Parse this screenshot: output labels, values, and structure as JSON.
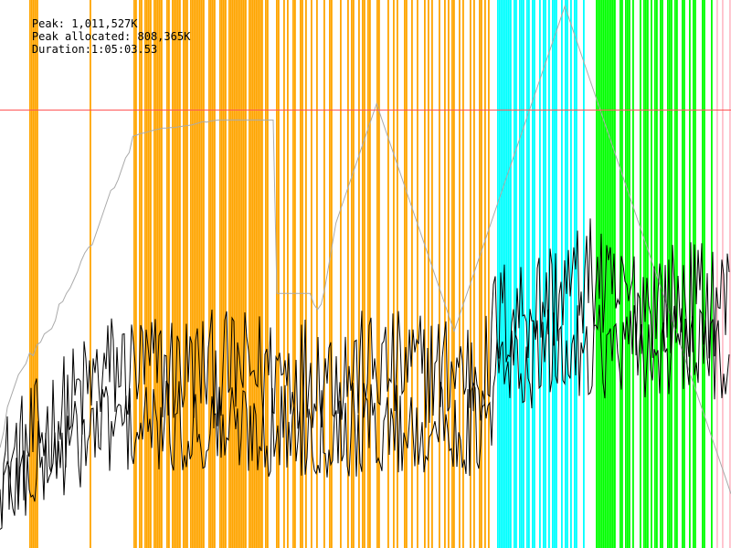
{
  "header": {
    "peak_text": "Peak: 1,011,527K",
    "peak_allocated_text": "Peak allocated: 808,365K",
    "duration_text": "Duration:1:05:03.53"
  },
  "colors": {
    "orange": "#FFA500",
    "cyan": "#00FFFF",
    "green": "#00FF00",
    "pink": "#FFC0CB",
    "threshold": "#FF5555",
    "heap": "#AAAAAA",
    "allocated": "#000000",
    "live": "#000000"
  },
  "chart_data": {
    "type": "line",
    "ylim": [
      0,
      1011527
    ],
    "threshold": 808365,
    "x_count": 400,
    "bands": [
      {
        "color_key": "orange",
        "x": [
          16,
          17,
          18,
          19,
          20,
          49,
          73,
          74,
          75,
          76,
          77,
          78,
          79,
          80,
          81,
          82,
          83,
          84,
          85,
          86,
          87,
          88,
          89,
          90,
          91,
          92,
          93,
          94,
          95,
          96,
          97,
          98,
          99,
          100,
          101,
          102,
          103,
          104,
          105,
          106,
          107,
          108,
          109,
          110,
          111,
          112,
          113,
          114,
          115,
          116,
          117,
          118,
          119,
          120,
          121,
          122,
          123,
          124,
          125,
          126,
          127,
          128,
          129,
          130,
          131,
          132,
          133,
          134,
          135,
          136,
          137,
          138,
          139,
          140,
          141,
          142,
          143,
          144,
          145,
          146,
          147,
          148,
          149,
          150,
          151,
          152,
          153,
          154,
          155,
          156,
          157,
          158,
          159,
          160,
          161,
          162,
          163,
          164,
          165,
          166,
          167,
          168,
          169,
          170,
          171,
          172,
          173,
          174,
          175,
          176,
          177,
          178,
          179,
          180,
          181,
          182,
          183,
          184,
          185,
          186,
          187,
          188,
          189,
          190,
          191,
          192,
          193,
          194,
          195,
          196,
          197,
          198,
          199,
          200,
          201,
          202,
          203,
          204,
          205,
          206,
          207,
          208,
          209,
          210,
          211,
          212,
          213,
          214,
          215,
          216,
          217,
          218,
          219,
          220,
          221,
          222,
          223,
          224,
          225,
          226,
          227,
          228,
          229,
          230,
          231,
          232,
          233,
          234,
          235,
          236,
          237,
          238,
          239,
          240,
          241,
          242,
          243,
          244,
          245,
          246,
          247,
          248,
          249,
          250,
          251,
          252,
          253,
          254,
          255,
          256,
          257,
          258,
          259,
          260,
          261,
          262,
          263,
          264,
          265,
          266,
          267
        ],
        "density": [
          1,
          1,
          1,
          1,
          1,
          1,
          1,
          1,
          0,
          1,
          1,
          0,
          1,
          1,
          1,
          1,
          0,
          1,
          1,
          1,
          1,
          1,
          0,
          0,
          1,
          1,
          0,
          1,
          1,
          1,
          1,
          1,
          0,
          1,
          1,
          1,
          0,
          1,
          1,
          1,
          1,
          1,
          1,
          1,
          1,
          0,
          0,
          1,
          1,
          1,
          1,
          0,
          0,
          1,
          1,
          1,
          1,
          0,
          1,
          1,
          1,
          1,
          1,
          1,
          1,
          1,
          1,
          1,
          0,
          1,
          1,
          1,
          1,
          1,
          1,
          1,
          1,
          0,
          1,
          1,
          0,
          0,
          0,
          0,
          1,
          1,
          0,
          0,
          1,
          0,
          1,
          0,
          0,
          1,
          1,
          0,
          0,
          1,
          1,
          0,
          1,
          0,
          0,
          1,
          0,
          0,
          1,
          0,
          0,
          0,
          1,
          0,
          0,
          1,
          1,
          0,
          0,
          0,
          0,
          1,
          0,
          0,
          0,
          1,
          0,
          1,
          1,
          0,
          0,
          1,
          0,
          1,
          1,
          0,
          1,
          1,
          0,
          0,
          0,
          1,
          1,
          0,
          0,
          0,
          0,
          1,
          0,
          0,
          1,
          0,
          1,
          0,
          0,
          0,
          1,
          1,
          0,
          0,
          1,
          0,
          0,
          1,
          0,
          0,
          0,
          1,
          0,
          1,
          0,
          1,
          0,
          0,
          0,
          1,
          0,
          0,
          1,
          0,
          1,
          0,
          1,
          1,
          0,
          0,
          1,
          0,
          1,
          0,
          0,
          0,
          1,
          0,
          1,
          0,
          0,
          1,
          1,
          0,
          1,
          0,
          1,
          0,
          0,
          0,
          1,
          1,
          0,
          0,
          0,
          1,
          0,
          1,
          0,
          1
        ]
      },
      {
        "color_key": "cyan",
        "x": [
          272,
          273,
          274,
          275,
          276,
          277,
          278,
          279,
          280,
          281,
          282,
          283,
          284,
          285,
          286,
          287,
          288,
          289,
          290,
          291,
          292,
          293,
          294,
          295,
          296,
          297,
          298,
          299,
          300,
          301,
          302,
          303,
          304,
          305,
          306,
          307,
          308,
          309,
          310,
          311,
          312,
          313,
          314,
          315,
          316,
          317,
          318,
          319,
          320
        ],
        "density": [
          1,
          1,
          1,
          1,
          1,
          1,
          1,
          1,
          0,
          1,
          1,
          0,
          1,
          1,
          1,
          0,
          1,
          1,
          0,
          1,
          1,
          0,
          0,
          1,
          0,
          1,
          1,
          0,
          1,
          0,
          1,
          1,
          1,
          0,
          0,
          1,
          0,
          1,
          1,
          0,
          1,
          0,
          1,
          1,
          0,
          0,
          0,
          1,
          0
        ]
      },
      {
        "color_key": "green",
        "x": [
          326,
          327,
          328,
          329,
          330,
          331,
          332,
          333,
          334,
          335,
          336,
          337,
          338,
          339,
          340,
          341,
          342,
          343,
          344,
          345,
          346,
          347,
          348,
          349,
          350,
          351,
          352,
          353,
          354,
          355,
          356,
          357,
          358,
          359,
          360,
          361,
          362,
          363,
          364,
          365,
          366,
          367,
          368,
          369,
          370,
          371,
          372,
          373,
          374,
          375,
          376,
          377,
          378,
          379,
          380,
          381,
          382,
          383,
          384,
          385,
          386,
          387,
          388,
          389,
          390
        ],
        "density": [
          1,
          1,
          1,
          1,
          1,
          1,
          1,
          1,
          1,
          1,
          1,
          0,
          0,
          1,
          1,
          0,
          1,
          1,
          1,
          0,
          1,
          0,
          0,
          0,
          1,
          0,
          1,
          1,
          1,
          0,
          1,
          0,
          1,
          1,
          0,
          1,
          1,
          0,
          0,
          1,
          1,
          1,
          0,
          1,
          1,
          0,
          0,
          1,
          1,
          0,
          0,
          1,
          0,
          1,
          1,
          0,
          0,
          0,
          1,
          1,
          0,
          0,
          0,
          1,
          0
        ]
      },
      {
        "color_key": "pink",
        "x": [
          392,
          395,
          399
        ],
        "density": [
          1,
          1,
          1
        ]
      }
    ],
    "series": [
      {
        "color_key": "heap",
        "values": [
          185000,
          215000,
          260000,
          280000,
          300000,
          320000,
          330000,
          340000,
          360000,
          355000,
          375000,
          380000,
          395000,
          400000,
          405000,
          420000,
          450000,
          455000,
          470000,
          480000,
          495000,
          510000,
          530000,
          545000,
          555000,
          560000,
          580000,
          600000,
          620000,
          640000,
          660000,
          665000,
          680000,
          700000,
          720000,
          730000,
          760000,
          762000,
          765000,
          766000,
          768000,
          770000,
          772000,
          773000,
          775000,
          775000,
          776000,
          776000,
          777000,
          778000,
          779000,
          780000,
          781000,
          783000,
          785000,
          787000,
          786000,
          788000,
          789000,
          790000,
          790000,
          790000,
          790000,
          790000,
          790000,
          790000,
          790000,
          790000,
          790000,
          790000,
          790000,
          790000,
          790000,
          790000,
          790000,
          470000,
          470000,
          470000,
          470000,
          470000,
          470000,
          470000,
          470000,
          470000,
          470000,
          450000,
          440000,
          450000,
          480000,
          520000,
          560000,
          600000,
          620000,
          640000,
          660000,
          680000,
          700000,
          720000,
          740000,
          760000,
          780000,
          800000,
          820000,
          800000,
          780000,
          760000,
          740000,
          720000,
          700000,
          680000,
          660000,
          640000,
          620000,
          600000,
          580000,
          560000,
          540000,
          520000,
          500000,
          480000,
          460000,
          440000,
          420000,
          400000,
          420000,
          440000,
          460000,
          480000,
          500000,
          520000,
          540000,
          560000,
          580000,
          600000,
          620000,
          640000,
          660000,
          680000,
          700000,
          720000,
          740000,
          760000,
          780000,
          800000,
          820000,
          840000,
          860000,
          880000,
          900000,
          920000,
          940000,
          960000,
          980000,
          1000000,
          980000,
          960000,
          940000,
          920000,
          900000,
          880000,
          860000,
          840000,
          820000,
          800000,
          780000,
          760000,
          740000,
          720000,
          700000,
          680000,
          660000,
          640000,
          620000,
          600000,
          580000,
          560000,
          540000,
          520000,
          500000,
          480000,
          460000,
          440000,
          420000,
          400000,
          380000,
          360000,
          340000,
          320000,
          300000,
          280000,
          260000,
          240000,
          220000,
          200000,
          180000,
          160000,
          140000,
          120000,
          100000
        ]
      }
    ]
  }
}
